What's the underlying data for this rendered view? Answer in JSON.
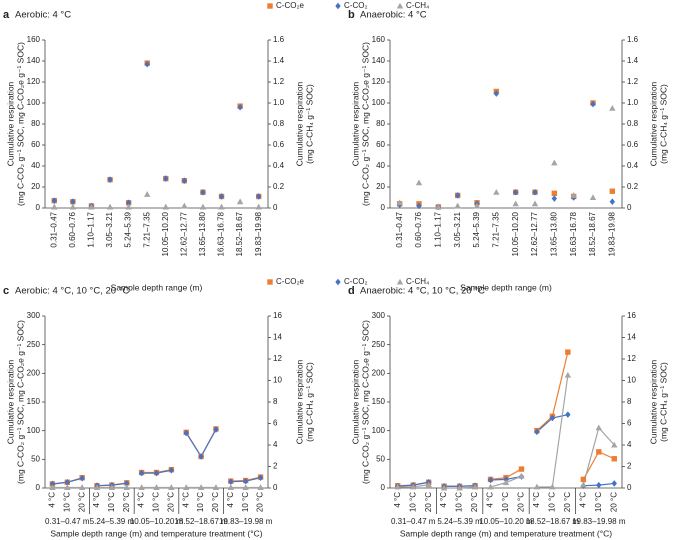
{
  "chart_data": [
    {
      "type": "point",
      "panel": "a",
      "title": "Aerobic: 4 °C",
      "legend": true,
      "ylabel": [
        "Cumulative respiration",
        "(mg C-CO₂ g⁻¹ SOC, mg C-CO₂e g⁻¹ SOC)"
      ],
      "y2label": [
        "Cumulative respiration",
        "(mg C-CH₄ g⁻¹ SOC)"
      ],
      "xlabel": "Sample depth range (m)",
      "categories": [
        "0.31–0.47",
        "0.60–0.76",
        "1.10–1.17",
        "3.05–3.21",
        "5.24–5.39",
        "7.21–7.35",
        "10.05–10.20",
        "12.62–12.77",
        "13.65–13.80",
        "16.63–16.78",
        "18.52–18.67",
        "19.83–19.98"
      ],
      "series": [
        {
          "name": "C-CO₂e",
          "color": "#ed7d31",
          "marker": "square",
          "values": [
            7,
            6,
            2,
            27,
            5,
            138,
            28,
            26,
            15,
            11,
            97,
            11
          ]
        },
        {
          "name": "C-CO₂",
          "color": "#4472c4",
          "marker": "diamond",
          "values": [
            7,
            6,
            2,
            27,
            5,
            137,
            28,
            26,
            15,
            11,
            96,
            11
          ]
        },
        {
          "name": "C-CH₄",
          "color": "#a5a5a5",
          "marker": "triangle",
          "axis": "y2",
          "values": [
            0.01,
            0.01,
            0.01,
            0.01,
            0.01,
            0.13,
            0.01,
            0.02,
            0.01,
            0.01,
            0.06,
            0.01
          ]
        }
      ],
      "ylim": [
        0,
        160
      ],
      "yticks": [
        0,
        20,
        40,
        60,
        80,
        100,
        120,
        140,
        160
      ],
      "y2lim": [
        0,
        1.6
      ],
      "y2ticks": [
        0,
        0.2,
        0.4,
        0.6,
        0.8,
        {
          "value": 1,
          "label": "1.0"
        },
        1.2,
        1.4,
        1.6
      ]
    },
    {
      "type": "point",
      "panel": "b",
      "title": "Anaerobic: 4 °C",
      "legend": false,
      "ylabel": [
        "Cumulative respiration",
        "(mg C-CO₂ g⁻¹ SOC, mg C-CO₂e g⁻¹ SOC)"
      ],
      "y2label": [
        "Cumulative respiration",
        "(mg C-CH₄ g⁻¹ SOC)"
      ],
      "xlabel": "Sample depth range (m)",
      "categories": [
        "0.31–0.47",
        "0.60–0.76",
        "1.10–1.17",
        "3.05–3.21",
        "5.24–5.39",
        "7.21–7.35",
        "10.05–10.20",
        "12.62–12.77",
        "13.65–13.80",
        "16.63–16.78",
        "18.52–18.67",
        "19.83–19.98"
      ],
      "series": [
        {
          "name": "C-CO₂e",
          "color": "#ed7d31",
          "marker": "square",
          "values": [
            4,
            4,
            1,
            12,
            5,
            111,
            15,
            15,
            14,
            11,
            100,
            16
          ]
        },
        {
          "name": "C-CO₂",
          "color": "#4472c4",
          "marker": "diamond",
          "values": [
            3,
            2,
            1,
            12,
            4,
            109,
            15,
            15,
            9,
            10,
            99,
            6
          ]
        },
        {
          "name": "C-CH₄",
          "color": "#a5a5a5",
          "marker": "triangle",
          "axis": "y2",
          "values": [
            0.05,
            0.24,
            0.01,
            0.02,
            0.02,
            0.15,
            0.04,
            0.04,
            0.43,
            0.12,
            0.1,
            0.95
          ]
        }
      ],
      "ylim": [
        0,
        160
      ],
      "yticks": [
        0,
        20,
        40,
        60,
        80,
        100,
        120,
        140,
        160
      ],
      "y2lim": [
        0,
        1.6
      ],
      "y2ticks": [
        0,
        0.2,
        0.4,
        0.6,
        0.8,
        {
          "value": 1,
          "label": "1.0"
        },
        1.2,
        1.4,
        1.6
      ]
    },
    {
      "type": "line",
      "panel": "c",
      "title": "Aerobic: 4 °C, 10 °C, 20 °C",
      "legend": true,
      "ylabel": [
        "Cumulative respiration",
        "(mg C-CO₂ g⁻¹ SOC, mg C-CO₂e g⁻¹ SOC)"
      ],
      "y2label": [
        "Cumulative respiration",
        "(mg C-CH₄ g⁻¹ SOC)"
      ],
      "xlabel": "Sample depth range (m) and temperature treatment (°C)",
      "categories": [
        "4 °C",
        "10 °C",
        "20 °C",
        "4 °C",
        "10 °C",
        "20 °C",
        "4 °C",
        "10 °C",
        "20 °C",
        "4 °C",
        "10 °C",
        "20 °C",
        "4 °C",
        "10 °C",
        "20 °C"
      ],
      "groups": [
        "0.31–0.47 m",
        "5.24–5.39 m",
        "10.05–10.20 m",
        "18.52–18.67 m",
        "19.83–19.98 m"
      ],
      "series": [
        {
          "name": "C-CO₂e",
          "color": "#ed7d31",
          "marker": "square",
          "values": [
            7,
            10,
            18,
            4,
            5,
            9,
            27,
            27,
            32,
            97,
            55,
            103,
            12,
            13,
            19
          ]
        },
        {
          "name": "C-CO₂",
          "color": "#4472c4",
          "marker": "diamond",
          "values": [
            7,
            10,
            17,
            4,
            5,
            8,
            26,
            26,
            31,
            96,
            55,
            102,
            11,
            12,
            18
          ]
        },
        {
          "name": "C-CH₄",
          "color": "#a5a5a5",
          "marker": "triangle",
          "axis": "y2",
          "values": [
            0.05,
            0.05,
            0.05,
            0.05,
            0.05,
            0.05,
            0.05,
            0.05,
            0.05,
            0.05,
            0.05,
            0.05,
            0.05,
            0.05,
            0.05
          ]
        }
      ],
      "ylim": [
        0,
        300
      ],
      "yticks": [
        0,
        50,
        100,
        150,
        200,
        250,
        300
      ],
      "y2lim": [
        0,
        16
      ],
      "y2ticks": [
        0,
        2,
        4,
        6,
        8,
        10,
        12,
        14,
        16
      ]
    },
    {
      "type": "line",
      "panel": "d",
      "title": "Anaerobic: 4 °C, 10 °C, 20 °C",
      "legend": false,
      "ylabel": [
        "Cumulative respiration",
        "(mg C-CO₂ g⁻¹ SOC, mg C-CO₂e g⁻¹ SOC)"
      ],
      "y2label": [
        "Cumulative respiration",
        "(mg C-CH₄ g⁻¹ SOC)"
      ],
      "xlabel": "Sample depth range (m) and temperature treatment (°C)",
      "categories": [
        "4 °C",
        "10 °C",
        "20 °C",
        "4 °C",
        "10 °C",
        "20 °C",
        "4 °C",
        "10 °C",
        "20 °C",
        "4 °C",
        "10 °C",
        "20 °C",
        "4 °C",
        "10 °C",
        "20 °C"
      ],
      "groups": [
        "0.31–0.47 m",
        "5.24–5.39 m",
        "10.05–10.20 m",
        "18.52–18.67 m",
        "19.83–19.98 m"
      ],
      "series": [
        {
          "name": "C-CO₂e",
          "color": "#ed7d31",
          "marker": "square",
          "values": [
            4,
            5,
            10,
            3,
            3,
            4,
            15,
            18,
            33,
            100,
            125,
            237,
            15,
            63,
            51
          ]
        },
        {
          "name": "C-CO₂",
          "color": "#4472c4",
          "marker": "diamond",
          "values": [
            3,
            5,
            10,
            3,
            3,
            4,
            14,
            15,
            20,
            98,
            122,
            128,
            4,
            5,
            8
          ]
        },
        {
          "name": "C-CH₄",
          "color": "#a5a5a5",
          "marker": "triangle",
          "axis": "y2",
          "values": [
            0.1,
            0.1,
            0.3,
            0,
            0,
            0.1,
            0.1,
            0.5,
            1.1,
            0.1,
            0.1,
            10.5,
            0.3,
            5.6,
            4
          ]
        }
      ],
      "ylim": [
        0,
        300
      ],
      "yticks": [
        0,
        50,
        100,
        150,
        200,
        250,
        300
      ],
      "y2lim": [
        0,
        16
      ],
      "y2ticks": [
        0,
        2,
        4,
        6,
        8,
        10,
        12,
        14,
        16
      ]
    }
  ]
}
